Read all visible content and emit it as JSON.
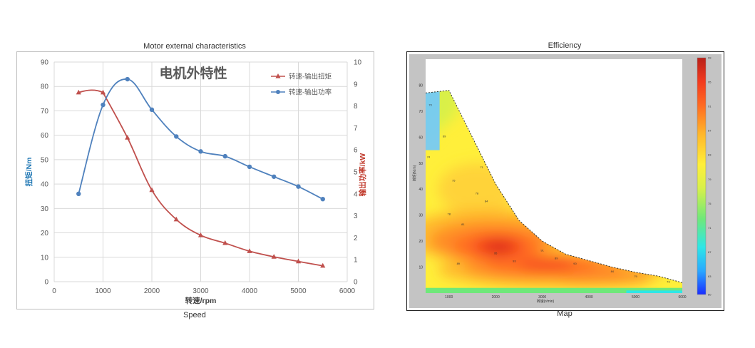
{
  "left": {
    "caption_top": "Motor external characteristics",
    "caption_bottom": "Speed",
    "chart_title": "电机外特性"
  },
  "right": {
    "caption_top": "Efficiency",
    "caption_bottom": "Map",
    "xlabel": "转速(r/min)",
    "ylabel": "转矩(N.m)"
  },
  "colors": {
    "torque": "#c0504d",
    "power": "#4f81bd",
    "y_left_label": "#1f77b4",
    "y_right_label": "#c0392b"
  },
  "chart_data": [
    {
      "type": "line",
      "title": "电机外特性",
      "xlabel": "转速/rpm",
      "ylabel_left": "扭矩/Nm",
      "ylabel_right": "输出功率/kW",
      "xlim": [
        0,
        6000
      ],
      "ylim_left": [
        0,
        90
      ],
      "ylim_right": [
        0,
        10
      ],
      "x_ticks": [
        0,
        1000,
        2000,
        3000,
        4000,
        5000,
        6000
      ],
      "y_left_ticks": [
        0,
        10,
        20,
        30,
        40,
        50,
        60,
        70,
        80,
        90
      ],
      "y_right_ticks": [
        0,
        1,
        2,
        3,
        4,
        5,
        6,
        7,
        8,
        9,
        10
      ],
      "grid": true,
      "legend_position": "top-right",
      "series": [
        {
          "name": "转速-输出扭矩",
          "axis": "left",
          "marker": "triangle",
          "color": "#c0504d",
          "x": [
            500,
            1000,
            1500,
            2000,
            2500,
            3000,
            3500,
            4000,
            4500,
            5000,
            5500
          ],
          "y": [
            77.5,
            77.5,
            59,
            37.5,
            25.5,
            19,
            15.8,
            12.5,
            10.2,
            8.3,
            6.5
          ],
          "curve_control": [
            800,
            79.5
          ]
        },
        {
          "name": "转速-输出功率",
          "axis": "right",
          "marker": "circle",
          "color": "#4f81bd",
          "x": [
            500,
            1000,
            1500,
            2000,
            2500,
            3000,
            3500,
            4000,
            4500,
            5000,
            5500
          ],
          "y": [
            4.0,
            8.05,
            9.22,
            7.83,
            6.61,
            5.93,
            5.71,
            5.23,
            4.78,
            4.33,
            3.76
          ]
        }
      ]
    },
    {
      "type": "heatmap",
      "title": "",
      "xlabel": "转速(r/min)",
      "ylabel": "转矩(N.m)",
      "xlim": [
        500,
        6000
      ],
      "ylim": [
        0,
        90
      ],
      "x_ticks": [
        1000,
        2000,
        3000,
        4000,
        5000,
        6000
      ],
      "y_ticks": [
        10,
        20,
        30,
        40,
        50,
        60,
        70,
        80
      ],
      "colorbar_ticks": [
        60,
        63,
        67,
        71,
        75,
        79,
        83,
        87,
        91,
        95,
        99
      ],
      "boundary": [
        [
          500,
          0
        ],
        [
          500,
          77
        ],
        [
          1000,
          78
        ],
        [
          1500,
          60
        ],
        [
          2000,
          42
        ],
        [
          2500,
          28
        ],
        [
          3000,
          20
        ],
        [
          3500,
          15
        ],
        [
          4000,
          12.5
        ],
        [
          4500,
          10
        ],
        [
          5000,
          8
        ],
        [
          5500,
          6.5
        ],
        [
          6000,
          4
        ],
        [
          6000,
          0
        ]
      ],
      "peak": {
        "x": 2050,
        "y": 17.5,
        "value": 95
      },
      "contour_labels": [
        {
          "x": 600,
          "y": 72,
          "text": "73"
        },
        {
          "x": 560,
          "y": 52,
          "text": "74"
        },
        {
          "x": 900,
          "y": 60,
          "text": "69"
        },
        {
          "x": 1100,
          "y": 43,
          "text": "75"
        },
        {
          "x": 1000,
          "y": 30,
          "text": "78"
        },
        {
          "x": 1300,
          "y": 26,
          "text": "81"
        },
        {
          "x": 1600,
          "y": 38,
          "text": "78"
        },
        {
          "x": 1700,
          "y": 48,
          "text": "71"
        },
        {
          "x": 1800,
          "y": 35,
          "text": "84"
        },
        {
          "x": 1200,
          "y": 11,
          "text": "89"
        },
        {
          "x": 2000,
          "y": 15,
          "text": "95"
        },
        {
          "x": 2400,
          "y": 12,
          "text": "93"
        },
        {
          "x": 3000,
          "y": 16,
          "text": "91"
        },
        {
          "x": 3300,
          "y": 13,
          "text": "89"
        },
        {
          "x": 3700,
          "y": 11,
          "text": "90"
        },
        {
          "x": 4500,
          "y": 8,
          "text": "84"
        },
        {
          "x": 5000,
          "y": 6,
          "text": "79"
        },
        {
          "x": 5700,
          "y": 4,
          "text": "73"
        }
      ]
    }
  ]
}
